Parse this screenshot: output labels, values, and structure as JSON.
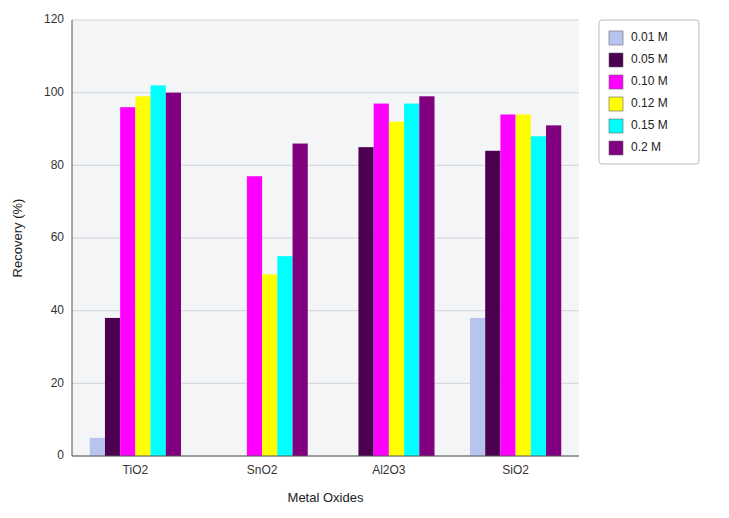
{
  "chart_data": {
    "type": "bar",
    "categories": [
      "TiO2",
      "SnO2",
      "Al2O3",
      "SiO2"
    ],
    "xlabel": "Metal Oxides",
    "ylabel": "Recovery (%)",
    "ylim": [
      0,
      120
    ],
    "yticks": [
      0,
      20,
      40,
      60,
      80,
      100,
      120
    ],
    "grid": true,
    "legend": "right",
    "series": [
      {
        "name": "0.01 M",
        "color": "#b8c4f0",
        "values": [
          5,
          0,
          0,
          38
        ]
      },
      {
        "name": "0.05 M",
        "color": "#4b0050",
        "values": [
          38,
          0,
          85,
          84
        ]
      },
      {
        "name": "0.10 M",
        "color": "#ff00ff",
        "values": [
          96,
          77,
          97,
          94
        ]
      },
      {
        "name": "0.12 M",
        "color": "#ffff00",
        "values": [
          99,
          50,
          92,
          94
        ]
      },
      {
        "name": "0.15 M",
        "color": "#00ffff",
        "values": [
          102,
          55,
          97,
          88
        ]
      },
      {
        "name": "0.2 M",
        "color": "#800080",
        "values": [
          100,
          86,
          99,
          91
        ]
      }
    ]
  }
}
